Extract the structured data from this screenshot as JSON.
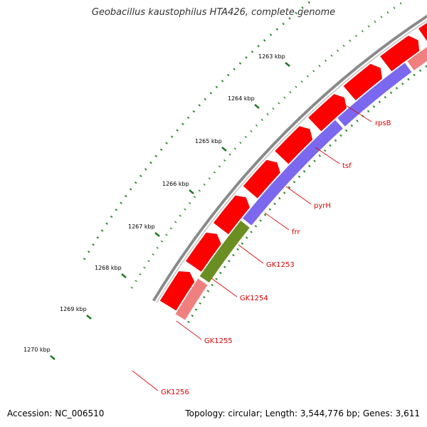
{
  "title": "Geobacillus kaustophilus HTA426, complete genome",
  "footer": {
    "accession": "Accession: NC_006510",
    "stats": "Topology: circular; Length: 3,544,776 bp; Genes: 3,611"
  },
  "colors": {
    "backbone": "#8a8a8a",
    "outer_genes": "#ff0000",
    "inner_default": "#f08080",
    "inner_pyrH": "#1ec8ff",
    "inner_blue": "#7b68ee",
    "inner_green": "#6b8e23",
    "inner_orange": "#ff8c00",
    "ticks": "#2e8b2e",
    "label": "#dd0000"
  },
  "scale": {
    "kbp_labels": [
      "1263 kbp",
      "1264 kbp",
      "1265 kbp",
      "1266 kbp",
      "1267 kbp",
      "1268 kbp",
      "1269 kbp",
      "1270 kbp"
    ]
  },
  "gene_labels": [
    "rpsB",
    "tsf",
    "pyrH",
    "frr",
    "GK1253",
    "GK1254",
    "GK1255",
    "GK1256"
  ]
}
